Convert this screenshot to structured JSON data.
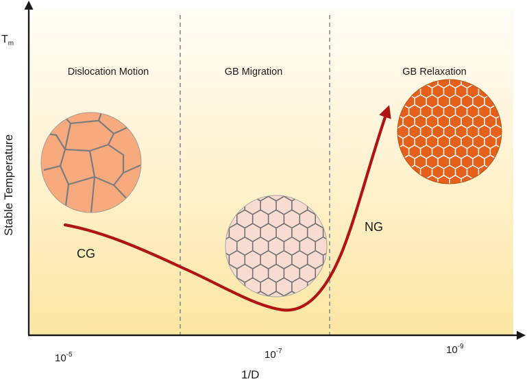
{
  "figure": {
    "y_axis_label": "Stable Temperature",
    "y_axis_top_label": {
      "base": "T",
      "sub": "m"
    },
    "x_axis_label": "1/D",
    "x_ticks": [
      {
        "base": "10",
        "exp": "-5"
      },
      {
        "base": "10",
        "exp": "-7"
      },
      {
        "base": "10",
        "exp": "-9"
      }
    ],
    "regions": [
      "Dislocation Motion",
      "GB Migration",
      "GB Relaxation"
    ],
    "curve_labels": {
      "coarse": "CG",
      "nano": "NG"
    },
    "grains": [
      {
        "name": "coarse-grain",
        "fill": "#f6aa7e",
        "line": "#7d7d7d"
      },
      {
        "name": "medium-grain",
        "fill": "#f8dcd2",
        "line": "#707070"
      },
      {
        "name": "nano-grain",
        "fill": "#e4611c",
        "line": "#ffffff"
      }
    ],
    "colors": {
      "curve": "#b01414",
      "background_top": "#fffdf6",
      "background_bottom": "#fbe6a2",
      "divider": "#8c8c8c",
      "axis": "#1a1a1a"
    }
  }
}
